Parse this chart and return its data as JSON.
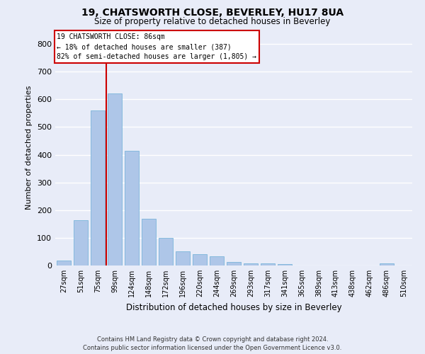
{
  "title_line1": "19, CHATSWORTH CLOSE, BEVERLEY, HU17 8UA",
  "title_line2": "Size of property relative to detached houses in Beverley",
  "xlabel": "Distribution of detached houses by size in Beverley",
  "ylabel": "Number of detached properties",
  "categories": [
    "27sqm",
    "51sqm",
    "75sqm",
    "99sqm",
    "124sqm",
    "148sqm",
    "172sqm",
    "196sqm",
    "220sqm",
    "244sqm",
    "269sqm",
    "293sqm",
    "317sqm",
    "341sqm",
    "365sqm",
    "389sqm",
    "413sqm",
    "438sqm",
    "462sqm",
    "486sqm",
    "510sqm"
  ],
  "values": [
    17,
    163,
    560,
    620,
    413,
    170,
    100,
    52,
    42,
    32,
    13,
    7,
    8,
    5,
    0,
    0,
    0,
    0,
    0,
    7,
    0
  ],
  "bar_color": "#aec6e8",
  "bar_edgecolor": "#6aaed6",
  "vertical_line_color": "#cc0000",
  "annotation_text_line1": "19 CHATSWORTH CLOSE: 86sqm",
  "annotation_text_line2": "← 18% of detached houses are smaller (387)",
  "annotation_text_line3": "82% of semi-detached houses are larger (1,805) →",
  "annotation_box_facecolor": "#ffffff",
  "annotation_box_edgecolor": "#cc0000",
  "background_color": "#e8ecf8",
  "plot_background_color": "#e8ecf8",
  "grid_color": "#ffffff",
  "ylim": [
    0,
    850
  ],
  "yticks": [
    0,
    100,
    200,
    300,
    400,
    500,
    600,
    700,
    800
  ],
  "footer_line1": "Contains HM Land Registry data © Crown copyright and database right 2024.",
  "footer_line2": "Contains public sector information licensed under the Open Government Licence v3.0."
}
